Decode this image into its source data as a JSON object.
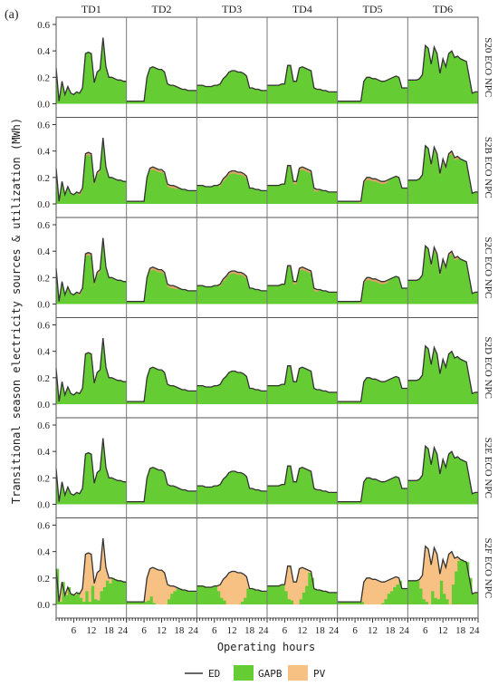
{
  "panel_label": "(a)",
  "chart_data": {
    "type": "area",
    "title": "",
    "xlabel": "Operating hours",
    "ylabel": "Transitional season electricity sources & utilization (MWh)",
    "ylim": [
      0,
      0.6
    ],
    "yticks": [
      0.0,
      0.2,
      0.4,
      0.6
    ],
    "day_xticks": [
      6,
      12,
      18,
      24
    ],
    "day_columns": [
      "TD1",
      "TD2",
      "TD3",
      "TD4",
      "TD5",
      "TD6"
    ],
    "scenario_rows": [
      "S20 ECO NPC",
      "S2B ECO NPC",
      "S2C ECO NPC",
      "S2D ECO NPC",
      "S2E ECO NPC",
      "S2F ECO NPC"
    ],
    "legend": [
      {
        "key": "ED",
        "color": "#333333",
        "kind": "line"
      },
      {
        "key": "GAPB",
        "color": "#66cc33",
        "kind": "patch"
      },
      {
        "key": "PV",
        "color": "#f7c183",
        "kind": "patch"
      }
    ],
    "colors": {
      "gapb": "#66cc33",
      "pv": "#f7c183",
      "ed": "#333333",
      "pv_thin": "#f0a070"
    },
    "ed_profiles": {
      "TD1": [
        0.27,
        0.02,
        0.17,
        0.07,
        0.13,
        0.08,
        0.07,
        0.09,
        0.08,
        0.12,
        0.38,
        0.39,
        0.38,
        0.16,
        0.24,
        0.26,
        0.5,
        0.28,
        0.2,
        0.2,
        0.19,
        0.18,
        0.18,
        0.17
      ],
      "TD2": [
        0.02,
        0.02,
        0.02,
        0.02,
        0.02,
        0.02,
        0.02,
        0.2,
        0.27,
        0.28,
        0.27,
        0.26,
        0.26,
        0.24,
        0.15,
        0.14,
        0.14,
        0.13,
        0.12,
        0.11,
        0.11,
        0.1,
        0.1,
        0.1
      ],
      "TD3": [
        0.14,
        0.14,
        0.14,
        0.13,
        0.13,
        0.13,
        0.14,
        0.14,
        0.15,
        0.19,
        0.21,
        0.24,
        0.25,
        0.25,
        0.24,
        0.24,
        0.23,
        0.21,
        0.12,
        0.12,
        0.11,
        0.11,
        0.1,
        0.1
      ],
      "TD4": [
        0.14,
        0.14,
        0.14,
        0.14,
        0.14,
        0.15,
        0.15,
        0.29,
        0.29,
        0.17,
        0.17,
        0.27,
        0.28,
        0.27,
        0.26,
        0.25,
        0.12,
        0.11,
        0.11,
        0.1,
        0.1,
        0.09,
        0.09,
        0.09
      ],
      "TD5": [
        0.02,
        0.02,
        0.02,
        0.02,
        0.02,
        0.02,
        0.02,
        0.02,
        0.02,
        0.17,
        0.2,
        0.2,
        0.19,
        0.19,
        0.18,
        0.17,
        0.17,
        0.18,
        0.19,
        0.2,
        0.21,
        0.2,
        0.12,
        0.12
      ],
      "TD6": [
        0.18,
        0.18,
        0.18,
        0.18,
        0.19,
        0.22,
        0.44,
        0.42,
        0.3,
        0.43,
        0.38,
        0.23,
        0.34,
        0.28,
        0.38,
        0.4,
        0.35,
        0.36,
        0.34,
        0.33,
        0.32,
        0.2,
        0.08,
        0.09
      ]
    },
    "pv_top_fraction": {
      "S20 ECO NPC": 0.0,
      "S2B ECO NPC": 0.06,
      "S2C ECO NPC": 0.06,
      "S2D ECO NPC": 0.0,
      "S2E ECO NPC": 0.0
    },
    "s2f_gapb": {
      "TD1": [
        0.27,
        0.02,
        0.17,
        0.07,
        0.13,
        0.08,
        0.07,
        0.09,
        0.05,
        0.02,
        0.1,
        0.02,
        0.14,
        0.04,
        0.03,
        0.1,
        0.13,
        0.18,
        0.16,
        0.2,
        0.19,
        0.18,
        0.18,
        0.17
      ],
      "TD2": [
        0.02,
        0.02,
        0.02,
        0.02,
        0.02,
        0.02,
        0.02,
        0.03,
        0.06,
        0.01,
        0.0,
        0.0,
        0.0,
        0.0,
        0.04,
        0.08,
        0.1,
        0.12,
        0.12,
        0.11,
        0.11,
        0.1,
        0.1,
        0.1
      ],
      "TD3": [
        0.14,
        0.14,
        0.14,
        0.13,
        0.13,
        0.13,
        0.14,
        0.1,
        0.05,
        0.03,
        0.0,
        0.0,
        0.0,
        0.0,
        0.0,
        0.02,
        0.05,
        0.12,
        0.12,
        0.12,
        0.11,
        0.11,
        0.1,
        0.1
      ],
      "TD4": [
        0.14,
        0.14,
        0.14,
        0.14,
        0.14,
        0.15,
        0.1,
        0.04,
        0.03,
        0.0,
        0.0,
        0.04,
        0.09,
        0.14,
        0.24,
        0.2,
        0.12,
        0.11,
        0.11,
        0.1,
        0.1,
        0.09,
        0.09,
        0.09
      ],
      "TD5": [
        0.02,
        0.02,
        0.02,
        0.02,
        0.02,
        0.02,
        0.02,
        0.02,
        0.02,
        0.0,
        0.0,
        0.0,
        0.0,
        0.0,
        0.0,
        0.01,
        0.04,
        0.08,
        0.1,
        0.13,
        0.15,
        0.18,
        0.12,
        0.12
      ],
      "TD6": [
        0.18,
        0.18,
        0.18,
        0.18,
        0.12,
        0.04,
        0.02,
        0.0,
        0.1,
        0.05,
        0.04,
        0.18,
        0.08,
        0.04,
        0.0,
        0.15,
        0.25,
        0.33,
        0.34,
        0.33,
        0.32,
        0.2,
        0.08,
        0.09
      ]
    }
  }
}
